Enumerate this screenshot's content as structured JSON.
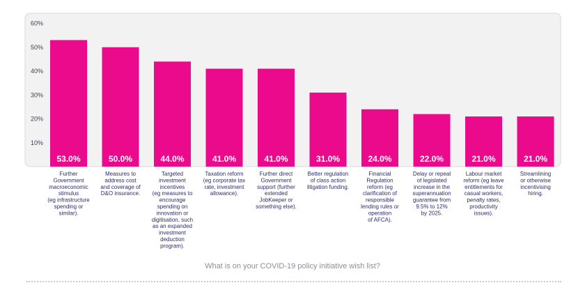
{
  "chart_data": {
    "type": "bar",
    "categories": [
      "Further Government macroeconomic stimulus (eg infrastructure spending or similar).",
      "Measures to address cost and coverage of D&O insurance.",
      "Targeted investment incentives (eg measures to encourage spending on innovation or digitisation, such as an expanded investment deduction program).",
      "Taxation reform (eg corporate tax rate, investment allowance).",
      "Further direct Government support (further extended JobKeeper or something else).",
      "Better regulation of class action litigation funding.",
      "Financial Regulation reform (eg clarification of responsible lending rules or operation of AFCA).",
      "Delay or repeal of legislated increase in the superannuation guarantee from 9.5% to 12% by 2025.",
      "Labour market reform (eg leave entitlements for casual workers, penalty rates, productivity issues).",
      "Streamlining or otherwise incentivising hiring."
    ],
    "category_lines": [
      [
        "Further",
        "Government",
        "macroeconomic",
        "stimulus",
        "(eg infrastructure",
        "spending or",
        "similar)."
      ],
      [
        "Measures to",
        "address cost",
        "and coverage of",
        "D&O insurance."
      ],
      [
        "Targeted",
        "investment",
        "incentives",
        "(eg measures to",
        "encourage",
        "spending on",
        "innovation or",
        "digitisation, such",
        "as an expanded",
        "investment",
        "deduction",
        "program)."
      ],
      [
        "Taxation reform",
        "(eg corporate tax",
        "rate, investment",
        "allowance)."
      ],
      [
        "Further direct",
        "Government",
        "support (further",
        "extended",
        "JobKeeper or",
        "something else)."
      ],
      [
        "Better regulation",
        "of class action",
        "litigation funding."
      ],
      [
        "Financial",
        "Regulation",
        "reform (eg",
        "clarification of",
        "responsible",
        "lending rules or",
        "operation",
        "of AFCA)."
      ],
      [
        "Delay or repeal",
        "of legislated",
        "increase in the",
        "superannuation",
        "guarantee from",
        "9.5% to 12%",
        "by 2025."
      ],
      [
        "Labour market",
        "reform (eg leave",
        "entitlements for",
        "casual workers,",
        "penalty rates,",
        "productivity",
        "issues)."
      ],
      [
        "Streamlining",
        "or otherwise",
        "incentivising",
        "hiring."
      ]
    ],
    "values": [
      53.0,
      50.0,
      44.0,
      41.0,
      41.0,
      31.0,
      24.0,
      22.0,
      21.0,
      21.0
    ],
    "value_labels": [
      "53.0%",
      "50.0%",
      "44.0%",
      "41.0%",
      "41.0%",
      "31.0%",
      "24.0%",
      "22.0%",
      "21.0%",
      "21.0%"
    ],
    "yticks": [
      10,
      20,
      30,
      40,
      50,
      60
    ],
    "ytick_labels": [
      "10%",
      "20%",
      "30%",
      "40%",
      "50%",
      "60%"
    ],
    "ylim": [
      0,
      60
    ],
    "xlabel": "What is on your COVID-19 policy initiative wish list?",
    "ylabel": "",
    "grid": false,
    "colors": {
      "bar": "#ec0a8c",
      "plot_background": "#f2f2f2",
      "plot_border": "#d9d9d9",
      "axis_text": "#3d3f52",
      "category_text": "#2a2c6e",
      "value_label": "#ffffff",
      "caption": "#8a8f98"
    }
  }
}
